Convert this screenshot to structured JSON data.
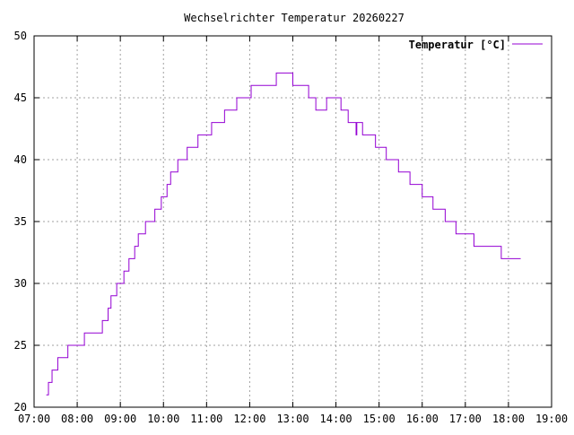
{
  "chart_data": {
    "type": "line",
    "title": "Wechselrichter Temperatur 20260227",
    "xlabel": "",
    "ylabel": "",
    "x_ticks": [
      "07:00",
      "08:00",
      "09:00",
      "10:00",
      "11:00",
      "12:00",
      "13:00",
      "14:00",
      "15:00",
      "16:00",
      "17:00",
      "18:00",
      "19:00"
    ],
    "y_ticks": [
      "20",
      "25",
      "30",
      "35",
      "40",
      "45",
      "50"
    ],
    "xlim": [
      "07:00",
      "19:00"
    ],
    "ylim": [
      20,
      50
    ],
    "grid": true,
    "legend_position": "top-right",
    "series": [
      {
        "name": "Temperatur [°C]",
        "color": "#9400d3",
        "step": true,
        "points": [
          [
            "07:17",
            21
          ],
          [
            "07:20",
            22
          ],
          [
            "07:25",
            23
          ],
          [
            "07:33",
            24
          ],
          [
            "07:47",
            25
          ],
          [
            "08:10",
            26
          ],
          [
            "08:35",
            27
          ],
          [
            "08:43",
            28
          ],
          [
            "08:47",
            29
          ],
          [
            "08:55",
            30
          ],
          [
            "09:05",
            31
          ],
          [
            "09:12",
            32
          ],
          [
            "09:20",
            33
          ],
          [
            "09:25",
            34
          ],
          [
            "09:35",
            35
          ],
          [
            "09:48",
            36
          ],
          [
            "09:57",
            37
          ],
          [
            "10:05",
            38
          ],
          [
            "10:10",
            39
          ],
          [
            "10:20",
            40
          ],
          [
            "10:33",
            41
          ],
          [
            "10:48",
            42
          ],
          [
            "11:07",
            43
          ],
          [
            "11:25",
            44
          ],
          [
            "11:42",
            45
          ],
          [
            "12:02",
            46
          ],
          [
            "12:37",
            47
          ],
          [
            "13:00",
            46
          ],
          [
            "13:22",
            45
          ],
          [
            "13:32",
            44
          ],
          [
            "13:47",
            45
          ],
          [
            "14:07",
            44
          ],
          [
            "14:17",
            43
          ],
          [
            "14:28",
            42
          ],
          [
            "14:29",
            43
          ],
          [
            "14:37",
            42
          ],
          [
            "14:55",
            41
          ],
          [
            "15:10",
            40
          ],
          [
            "15:27",
            39
          ],
          [
            "15:43",
            38
          ],
          [
            "16:00",
            37
          ],
          [
            "16:15",
            36
          ],
          [
            "16:32",
            35
          ],
          [
            "16:47",
            34
          ],
          [
            "17:12",
            33
          ],
          [
            "17:50",
            32
          ],
          [
            "18:17",
            32
          ]
        ]
      }
    ]
  }
}
